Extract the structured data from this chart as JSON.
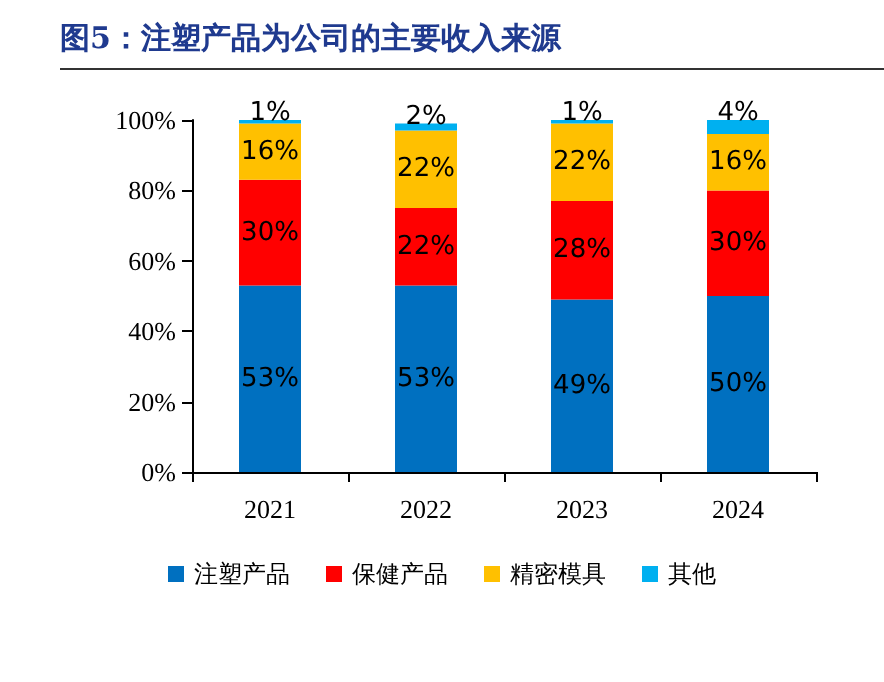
{
  "chart_data": {
    "type": "bar",
    "title": "图5：注塑产品为公司的主要收入来源",
    "categories": [
      "2021",
      "2022",
      "2023",
      "2024"
    ],
    "stacked": true,
    "series": [
      {
        "name": "注塑产品",
        "color": "#0070c0",
        "values": [
          53,
          53,
          49,
          50
        ],
        "value_labels": [
          "53%",
          "53%",
          "49%",
          "50%"
        ]
      },
      {
        "name": "保健产品",
        "color": "#ff0000",
        "values": [
          30,
          22,
          28,
          30
        ],
        "value_labels": [
          "30%",
          "22%",
          "28%",
          "30%"
        ]
      },
      {
        "name": "精密模具",
        "color": "#ffc000",
        "values": [
          16,
          22,
          22,
          16
        ],
        "value_labels": [
          "16%",
          "22%",
          "22%",
          "16%"
        ]
      },
      {
        "name": "其他",
        "color": "#00b0f0",
        "values": [
          1,
          2,
          1,
          4
        ],
        "value_labels": [
          "1%",
          "2%",
          "1%",
          "4%"
        ]
      }
    ],
    "ylim": [
      0,
      100
    ],
    "yticks": [
      {
        "value": 0,
        "label": "0%"
      },
      {
        "value": 20,
        "label": "20%"
      },
      {
        "value": 40,
        "label": "40%"
      },
      {
        "value": 60,
        "label": "60%"
      },
      {
        "value": 80,
        "label": "80%"
      },
      {
        "value": 100,
        "label": "100%"
      }
    ],
    "grid": false,
    "legend": "bottom"
  }
}
